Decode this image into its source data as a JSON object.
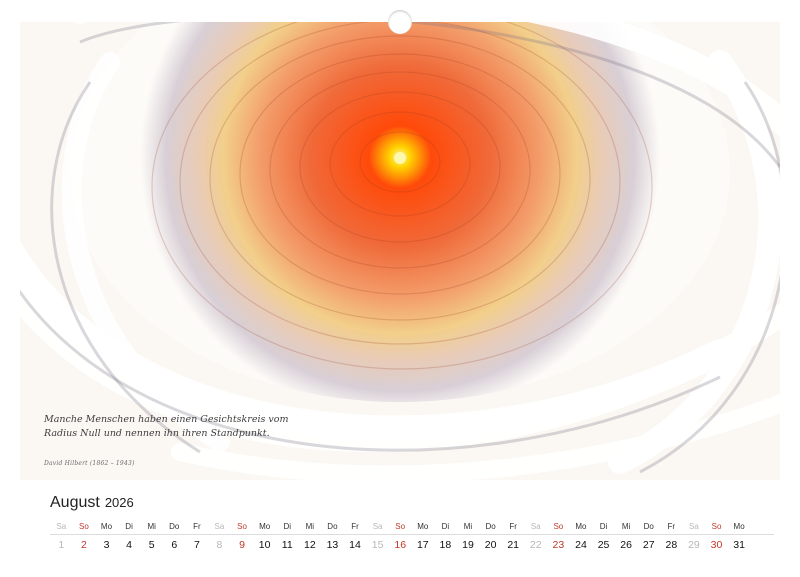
{
  "quote": {
    "line1": "Manche Menschen haben einen Gesichtskreis vom",
    "line2": "Radius Null und nennen ihn ihren Standpunkt.",
    "author": "David Hilbert (1862 – 1943)"
  },
  "calendar": {
    "month": "August",
    "year": "2026",
    "weekdays": [
      "Sa",
      "So",
      "Mo",
      "Di",
      "Mi",
      "Do",
      "Fr",
      "Sa",
      "So",
      "Mo",
      "Di",
      "Mi",
      "Do",
      "Fr",
      "Sa",
      "So",
      "Mo",
      "Di",
      "Mi",
      "Do",
      "Fr",
      "Sa",
      "So",
      "Mo",
      "Di",
      "Mi",
      "Do",
      "Fr",
      "Sa",
      "So",
      "Mo"
    ],
    "days": [
      "1",
      "2",
      "3",
      "4",
      "5",
      "6",
      "7",
      "8",
      "9",
      "10",
      "11",
      "12",
      "13",
      "14",
      "15",
      "16",
      "17",
      "18",
      "19",
      "20",
      "21",
      "22",
      "23",
      "24",
      "25",
      "26",
      "27",
      "28",
      "29",
      "30",
      "31"
    ]
  },
  "colors": {
    "sunday": "#c0392b",
    "saturday": "#b8b8b8",
    "center": "#ffe600",
    "core": "#ff3b00"
  }
}
